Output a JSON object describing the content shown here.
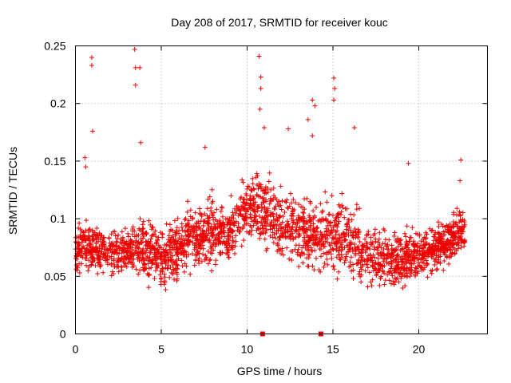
{
  "chart_data": {
    "type": "scatter",
    "title": "Day 208 of 2017, SRMTID for receiver kouc",
    "xlabel": "GPS time / hours",
    "ylabel": "SRMTID / TECUs",
    "xlim": [
      0,
      24
    ],
    "ylim": [
      0,
      0.25
    ],
    "xticks": [
      0,
      5,
      10,
      15,
      20
    ],
    "yticks": [
      0,
      0.05,
      0.1,
      0.15,
      0.2,
      0.25
    ],
    "xtick_labels": [
      "0",
      "5",
      "10",
      "15",
      "20"
    ],
    "ytick_labels": [
      "0",
      "0.05",
      "0.1",
      "0.15",
      "0.2",
      "0.25"
    ],
    "grid": true,
    "marker": "+",
    "color": "#ee0000",
    "data_range_hours": [
      0,
      22.7
    ],
    "envelope": {
      "x": [
        0,
        1,
        2,
        3,
        4,
        5,
        6,
        7,
        8,
        9,
        10,
        11,
        12,
        13,
        14,
        15,
        16,
        17,
        18,
        19,
        20,
        21,
        22,
        22.7
      ],
      "low": [
        0.045,
        0.04,
        0.04,
        0.04,
        0.035,
        0.03,
        0.035,
        0.04,
        0.04,
        0.04,
        0.06,
        0.06,
        0.05,
        0.045,
        0.04,
        0.04,
        0.04,
        0.035,
        0.03,
        0.035,
        0.04,
        0.045,
        0.05,
        0.05
      ],
      "median": [
        0.075,
        0.075,
        0.07,
        0.072,
        0.072,
        0.065,
        0.075,
        0.085,
        0.09,
        0.088,
        0.11,
        0.105,
        0.095,
        0.09,
        0.085,
        0.085,
        0.08,
        0.07,
        0.065,
        0.065,
        0.07,
        0.075,
        0.085,
        0.09
      ],
      "high": [
        0.12,
        0.12,
        0.11,
        0.115,
        0.13,
        0.12,
        0.13,
        0.14,
        0.15,
        0.14,
        0.16,
        0.17,
        0.16,
        0.16,
        0.15,
        0.16,
        0.15,
        0.13,
        0.12,
        0.13,
        0.12,
        0.12,
        0.13,
        0.13
      ]
    },
    "outliers": [
      {
        "x": 0.95,
        "y": 0.24
      },
      {
        "x": 0.95,
        "y": 0.233
      },
      {
        "x": 1.0,
        "y": 0.176
      },
      {
        "x": 0.6,
        "y": 0.145
      },
      {
        "x": 0.55,
        "y": 0.153
      },
      {
        "x": 3.45,
        "y": 0.247
      },
      {
        "x": 3.5,
        "y": 0.231
      },
      {
        "x": 3.75,
        "y": 0.231
      },
      {
        "x": 3.5,
        "y": 0.216
      },
      {
        "x": 3.8,
        "y": 0.166
      },
      {
        "x": 10.7,
        "y": 0.241
      },
      {
        "x": 10.8,
        "y": 0.223
      },
      {
        "x": 10.8,
        "y": 0.213
      },
      {
        "x": 10.75,
        "y": 0.195
      },
      {
        "x": 11.0,
        "y": 0.179
      },
      {
        "x": 13.55,
        "y": 0.186
      },
      {
        "x": 13.8,
        "y": 0.172
      },
      {
        "x": 13.95,
        "y": 0.198
      },
      {
        "x": 13.8,
        "y": 0.203
      },
      {
        "x": 15.05,
        "y": 0.222
      },
      {
        "x": 15.1,
        "y": 0.213
      },
      {
        "x": 15.05,
        "y": 0.203
      },
      {
        "x": 16.25,
        "y": 0.179
      },
      {
        "x": 12.4,
        "y": 0.178
      },
      {
        "x": 7.55,
        "y": 0.162
      },
      {
        "x": 19.4,
        "y": 0.148
      },
      {
        "x": 22.45,
        "y": 0.151
      },
      {
        "x": 22.4,
        "y": 0.133
      }
    ],
    "gap_markers": [
      {
        "x": 10.9,
        "y": 0
      },
      {
        "x": 14.3,
        "y": 0
      }
    ]
  }
}
